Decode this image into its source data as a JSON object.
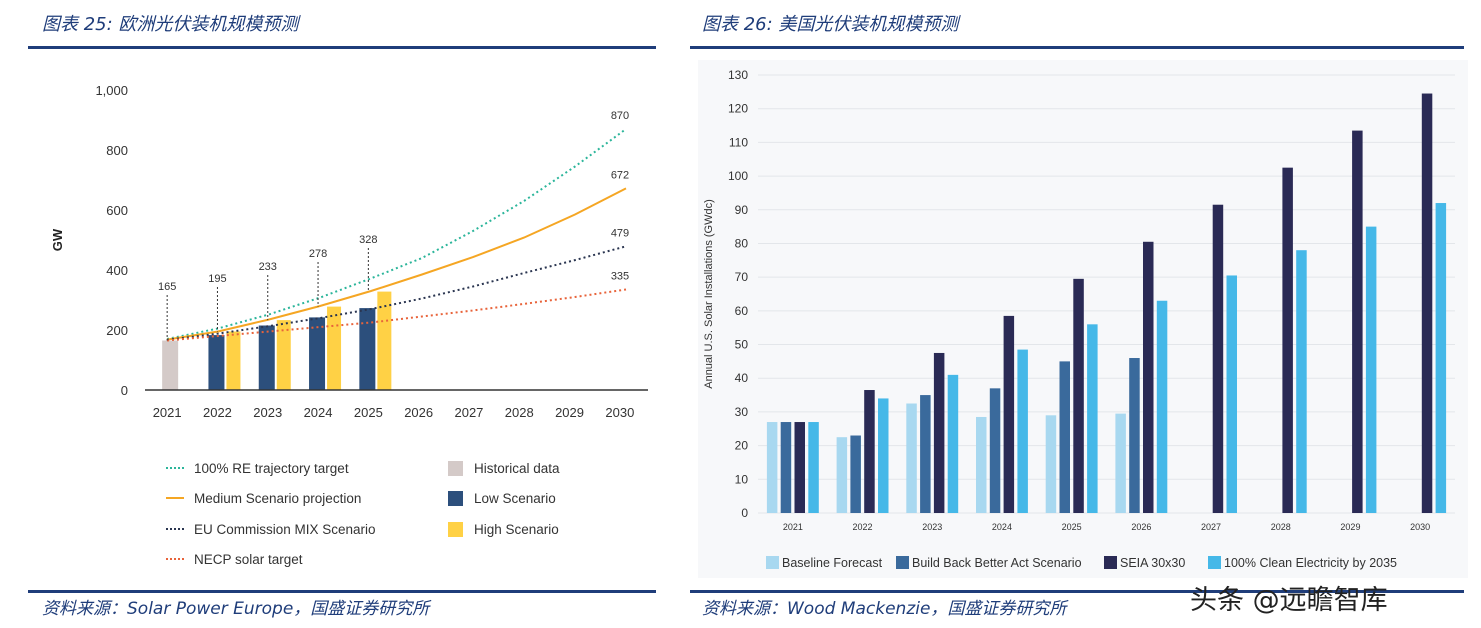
{
  "left": {
    "figure_title": "图表 25:  欧洲光伏装机规模预测",
    "source": "资料来源：Solar Power Europe，国盛证券研究所"
  },
  "right": {
    "figure_title": "图表 26:  美国光伏装机规模预测",
    "source": "资料来源：Wood Mackenzie，国盛证券研究所"
  },
  "watermark": "头条 @远瞻智库",
  "colors": {
    "navy_rule": "#1f3d7a",
    "re_target": "#2bb59a",
    "medium": "#f5a623",
    "eu_mix": "#2a3550",
    "necp": "#e8633a",
    "historical": "#d4cac8",
    "low": "#2c4f7c",
    "high": "#ffd145",
    "baseline": "#a8d8f0",
    "bba": "#3a6a9c",
    "seia": "#2a2a55",
    "clean": "#45b8e8"
  },
  "chart_data": [
    {
      "type": "bar",
      "title": "",
      "ylabel": "GW",
      "xlabel": "",
      "ylim": [
        0,
        1000
      ],
      "yticks": [
        0,
        200,
        400,
        600,
        800,
        1000
      ],
      "ytick_labels": [
        "0",
        "200",
        "400",
        "600",
        "800",
        "1,000"
      ],
      "categories": [
        "2021",
        "2022",
        "2023",
        "2024",
        "2025",
        "2026",
        "2027",
        "2028",
        "2029",
        "2030"
      ],
      "bars": [
        {
          "name": "Historical data",
          "values": [
            165,
            null,
            null,
            null,
            null,
            null,
            null,
            null,
            null,
            null
          ]
        },
        {
          "name": "Low Scenario",
          "values": [
            null,
            183,
            215,
            242,
            273,
            null,
            null,
            null,
            null,
            null
          ]
        },
        {
          "name": "High Scenario",
          "values": [
            null,
            195,
            233,
            278,
            328,
            null,
            null,
            null,
            null,
            null
          ]
        }
      ],
      "lines": [
        {
          "name": "100% RE trajectory target",
          "style": "dotted",
          "values": [
            170,
            205,
            252,
            308,
            372,
            440,
            530,
            630,
            745,
            870
          ]
        },
        {
          "name": "Medium Scenario projection",
          "style": "solid",
          "values": [
            168,
            195,
            235,
            280,
            330,
            385,
            443,
            508,
            585,
            672
          ]
        },
        {
          "name": "EU Commission MIX Scenario",
          "style": "dotted",
          "values": [
            167,
            188,
            213,
            240,
            270,
            305,
            345,
            390,
            433,
            479
          ]
        },
        {
          "name": "NECP solar target",
          "style": "dotted",
          "values": [
            165,
            180,
            195,
            210,
            225,
            245,
            265,
            287,
            310,
            335
          ]
        }
      ],
      "annotations": [
        {
          "category": "2021",
          "label": "165"
        },
        {
          "category": "2022",
          "label": "195"
        },
        {
          "category": "2023",
          "label": "233"
        },
        {
          "category": "2024",
          "label": "278"
        },
        {
          "category": "2025",
          "label": "328"
        },
        {
          "category": "2030",
          "label": "870",
          "series": "100% RE trajectory target"
        },
        {
          "category": "2030",
          "label": "672",
          "series": "Medium Scenario projection"
        },
        {
          "category": "2030",
          "label": "479",
          "series": "EU Commission MIX Scenario"
        },
        {
          "category": "2030",
          "label": "335",
          "series": "NECP solar target"
        }
      ],
      "legend": {
        "placement": "bottom",
        "items": [
          {
            "label": "100% RE trajectory target",
            "kind": "dotted-line"
          },
          {
            "label": "Historical data",
            "kind": "box"
          },
          {
            "label": "Medium Scenario projection",
            "kind": "solid-line"
          },
          {
            "label": "Low Scenario",
            "kind": "box"
          },
          {
            "label": "EU Commission MIX Scenario",
            "kind": "dotted-line"
          },
          {
            "label": "High Scenario",
            "kind": "box"
          },
          {
            "label": "NECP solar target",
            "kind": "dotted-line"
          }
        ]
      },
      "grid": false
    },
    {
      "type": "bar",
      "title": "",
      "ylabel": "Annual U.S. Solar Installations (GWdc)",
      "xlabel": "",
      "ylim": [
        0,
        130
      ],
      "yticks": [
        0,
        10,
        20,
        30,
        40,
        50,
        60,
        70,
        80,
        90,
        100,
        110,
        120,
        130
      ],
      "categories": [
        "2021",
        "2022",
        "2023",
        "2024",
        "2025",
        "2026",
        "2027",
        "2028",
        "2029",
        "2030"
      ],
      "series": [
        {
          "name": "Baseline Forecast",
          "values": [
            27,
            22.5,
            32.5,
            28.5,
            29,
            29.5,
            null,
            null,
            null,
            null
          ]
        },
        {
          "name": "Build Back Better Act Scenario",
          "values": [
            27,
            23,
            35,
            37,
            45,
            46,
            null,
            null,
            null,
            null
          ]
        },
        {
          "name": "SEIA 30x30",
          "values": [
            27,
            36.5,
            47.5,
            58.5,
            69.5,
            80.5,
            91.5,
            102.5,
            113.5,
            124.5
          ]
        },
        {
          "name": "100% Clean Electricity by 2035",
          "values": [
            27,
            34,
            41,
            48.5,
            56,
            63,
            70.5,
            78,
            85,
            92
          ]
        }
      ],
      "legend": {
        "placement": "bottom"
      },
      "grid": true
    }
  ]
}
